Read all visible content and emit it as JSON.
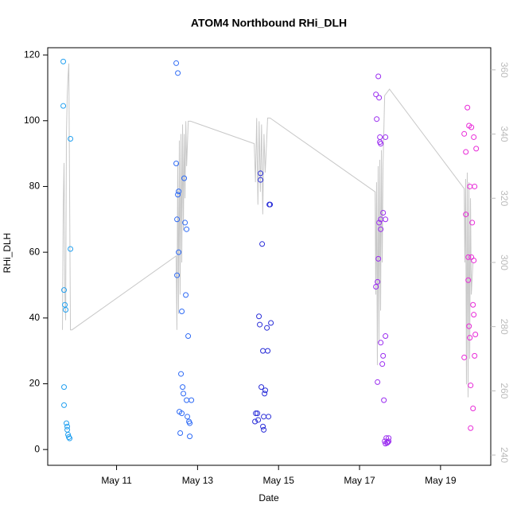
{
  "chart_data": {
    "type": "scatter",
    "title": "ATOM4 Northbound RHi_DLH",
    "xlabel": "Date",
    "ylabel": "RHi_DLH",
    "xlim": [
      9.3,
      20.24
    ],
    "ylim": [
      -4.8,
      122.2
    ],
    "y2lim": [
      236.8,
      366.9
    ],
    "xticks": [
      {
        "value": 11,
        "label": "May 11"
      },
      {
        "value": 13,
        "label": "May 13"
      },
      {
        "value": 15,
        "label": "May 15"
      },
      {
        "value": 17,
        "label": "May 17"
      },
      {
        "value": 19,
        "label": "May 19"
      }
    ],
    "yticks": [
      0,
      20,
      40,
      60,
      80,
      100,
      120
    ],
    "y2ticks": [
      240,
      260,
      280,
      300,
      320,
      340,
      360
    ],
    "y2color": "#bbbbbb",
    "series": [
      {
        "type": "points",
        "color": "#22a0f0",
        "x": [
          9.684,
          9.684,
          9.703,
          9.723,
          9.743,
          9.703,
          9.703,
          9.762,
          9.782,
          9.782,
          9.802,
          9.821,
          9.841,
          9.861,
          9.861
        ],
        "values": [
          118,
          104.5,
          48.5,
          44,
          42.5,
          19,
          13.5,
          8,
          7,
          6,
          4.5,
          3.8,
          3.4,
          94.5,
          61
        ]
      },
      {
        "type": "points",
        "color": "#2f6bf5",
        "x": [
          12.473,
          12.513,
          12.473,
          12.513,
          12.533,
          12.67,
          12.493,
          12.69,
          12.729,
          12.533,
          12.493,
          12.709,
          12.611,
          12.768,
          12.591,
          12.631,
          12.65,
          12.729,
          12.847,
          12.552,
          12.611,
          12.748,
          12.807,
          12.788,
          12.572,
          12.807
        ],
        "values": [
          117.5,
          114.5,
          87,
          77.5,
          78.5,
          82.5,
          70,
          69,
          67,
          60,
          53,
          47,
          42,
          34.5,
          23,
          19,
          17,
          15,
          15,
          11.5,
          11,
          10,
          8,
          8.5,
          5,
          4
        ]
      },
      {
        "type": "points",
        "color": "#2a2ed8",
        "x": [
          14.555,
          14.555,
          14.791,
          14.772,
          14.595,
          14.516,
          14.536,
          14.713,
          14.811,
          14.614,
          14.732,
          14.575,
          14.673,
          14.654,
          14.438,
          14.477,
          14.418,
          14.497,
          14.634,
          14.752,
          14.614,
          14.634
        ],
        "values": [
          84,
          82,
          74.5,
          74.5,
          62.5,
          40.5,
          38,
          37,
          38.5,
          30,
          30,
          19,
          18,
          17,
          11,
          11,
          8.5,
          9,
          10,
          10,
          7,
          6
        ]
      },
      {
        "type": "points",
        "color": "#9a2cf0",
        "x": [
          17.464,
          17.405,
          17.483,
          17.424,
          17.503,
          17.523,
          17.503,
          17.64,
          17.582,
          17.523,
          17.64,
          17.483,
          17.523,
          17.464,
          17.444,
          17.405,
          17.64,
          17.523,
          17.582,
          17.562,
          17.444,
          17.601,
          17.66,
          17.719,
          17.621,
          17.68,
          17.719,
          17.64,
          17.699
        ],
        "values": [
          113.5,
          108,
          107,
          100.5,
          93.5,
          93,
          95,
          95,
          72,
          70,
          70,
          69,
          67,
          58,
          51,
          49.5,
          34.5,
          32.5,
          28.5,
          26,
          20.5,
          15,
          3.5,
          3.5,
          2.5,
          2,
          2.5,
          1.8,
          2.2
        ]
      },
      {
        "type": "points",
        "color": "#e82ad8",
        "x": [
          19.664,
          19.703,
          19.762,
          19.585,
          19.821,
          19.88,
          19.625,
          19.723,
          19.841,
          19.625,
          19.782,
          19.684,
          19.762,
          19.821,
          19.684,
          19.802,
          19.821,
          19.703,
          19.86,
          19.723,
          19.585,
          19.841,
          19.743,
          19.802,
          19.743
        ],
        "values": [
          104,
          98.5,
          98,
          96,
          95,
          91.5,
          90.5,
          80,
          80,
          71.5,
          69,
          58.5,
          58.5,
          57.5,
          51.5,
          44,
          41,
          37.5,
          35,
          34,
          28,
          28.5,
          19.5,
          12.5,
          6.5
        ]
      },
      {
        "type": "line",
        "axis": "y2",
        "color": "#c8c8c8",
        "x": [
          9.664,
          9.684,
          9.703,
          9.723,
          9.743,
          9.762,
          9.782,
          9.802,
          9.821,
          9.861,
          9.9,
          12.47,
          12.49,
          12.51,
          12.53,
          12.55,
          12.57,
          12.59,
          12.61,
          12.63,
          12.65,
          12.67,
          12.69,
          12.71,
          12.73,
          12.77,
          12.83,
          14.4,
          14.43,
          14.46,
          14.49,
          14.52,
          14.55,
          14.58,
          14.61,
          14.64,
          14.67,
          14.7,
          14.73,
          14.79,
          17.385,
          17.4,
          17.42,
          17.44,
          17.46,
          17.48,
          17.5,
          17.52,
          17.54,
          17.56,
          17.58,
          17.62,
          17.74,
          19.585,
          19.6,
          19.62,
          19.64,
          19.66,
          19.68,
          19.7,
          19.72,
          19.74,
          19.76,
          19.8
        ],
        "values": [
          279,
          318,
          331,
          290,
          282,
          340,
          352,
          358,
          362,
          279,
          279,
          302,
          279,
          331,
          284,
          338,
          290,
          340,
          300,
          343,
          310,
          340,
          320,
          344,
          330,
          344,
          344,
          337,
          325,
          345,
          318,
          344,
          322,
          343,
          315,
          340,
          328,
          336,
          345,
          345,
          322,
          290,
          325,
          268,
          330,
          275,
          332,
          285,
          335,
          300,
          330,
          352,
          354,
          323,
          300,
          326,
          262,
          328,
          258,
          325,
          270,
          320,
          290,
          300
        ]
      }
    ]
  }
}
